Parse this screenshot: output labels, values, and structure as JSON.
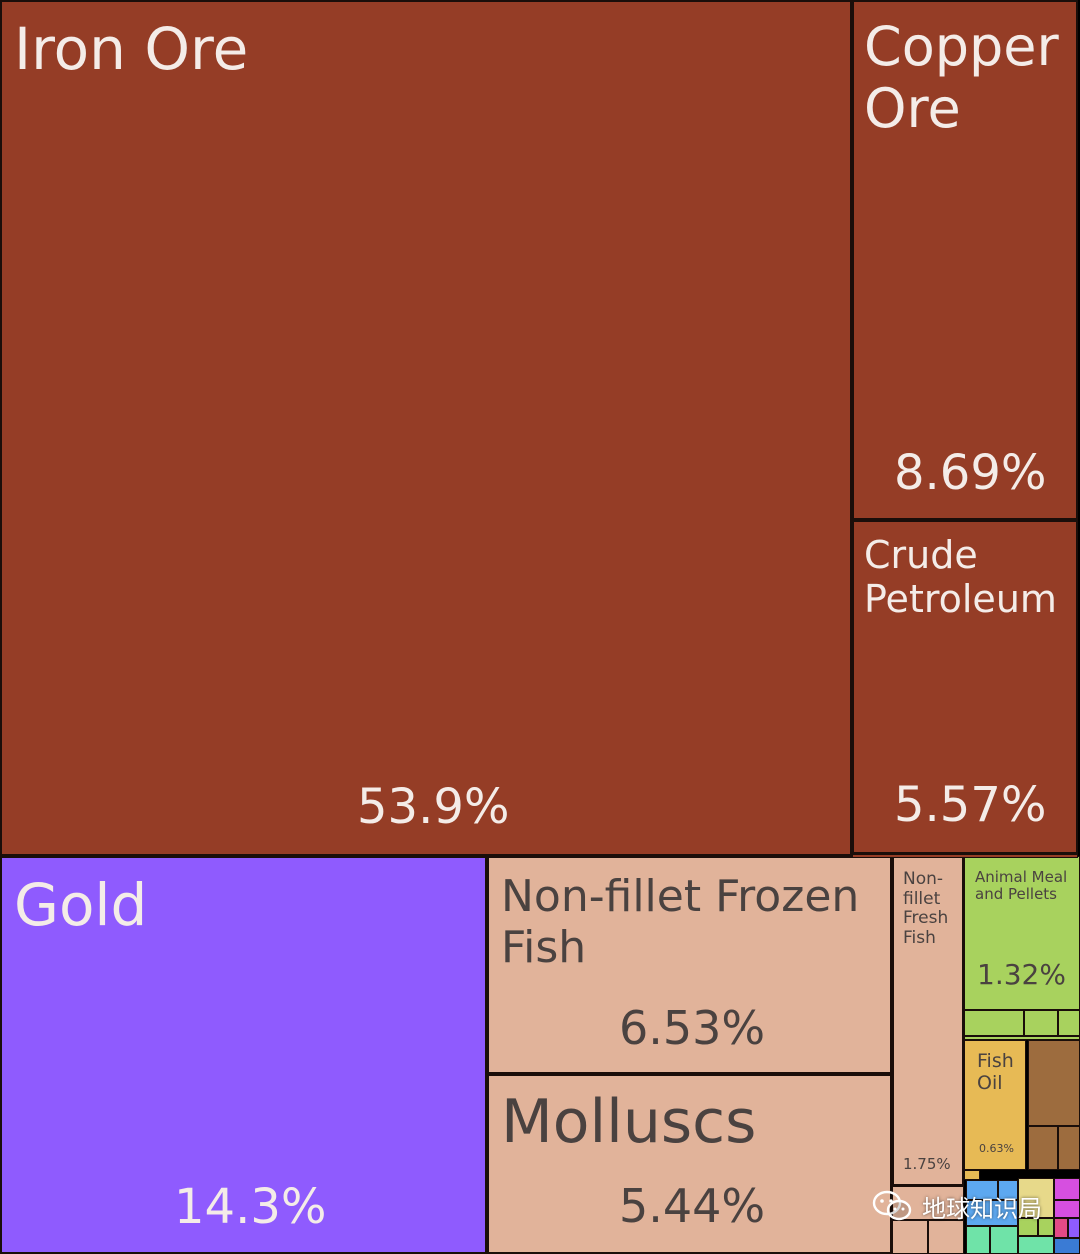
{
  "chart_data": {
    "type": "treemap",
    "unit": "%",
    "items": [
      {
        "name": "Iron Ore",
        "value": 53.9,
        "label": "53.9%",
        "color": "#953D26"
      },
      {
        "name": "Copper Ore",
        "value": 8.69,
        "label": "8.69%",
        "color": "#953D26"
      },
      {
        "name": "Crude Petroleum",
        "value": 5.57,
        "label": "5.57%",
        "color": "#953D26"
      },
      {
        "name": "Gold",
        "value": 14.3,
        "label": "14.3%",
        "color": "#8F5BFE"
      },
      {
        "name": "Non-fillet Frozen Fish",
        "value": 6.53,
        "label": "6.53%",
        "color": "#E1B39A"
      },
      {
        "name": "Molluscs",
        "value": 5.44,
        "label": "5.44%",
        "color": "#E1B39A"
      },
      {
        "name": "Non-fillet Fresh Fish",
        "value": 1.75,
        "label": "1.75%",
        "color": "#E1B39A"
      },
      {
        "name": "Animal Meal and Pellets",
        "value": 1.32,
        "label": "1.32%",
        "color": "#A8D25E"
      },
      {
        "name": "Fish Oil",
        "value": 0.63,
        "label": "0.63%",
        "color": "#E7BA55"
      }
    ]
  },
  "watermark": {
    "text": "地球知识局",
    "icon": "wechat-icon"
  }
}
